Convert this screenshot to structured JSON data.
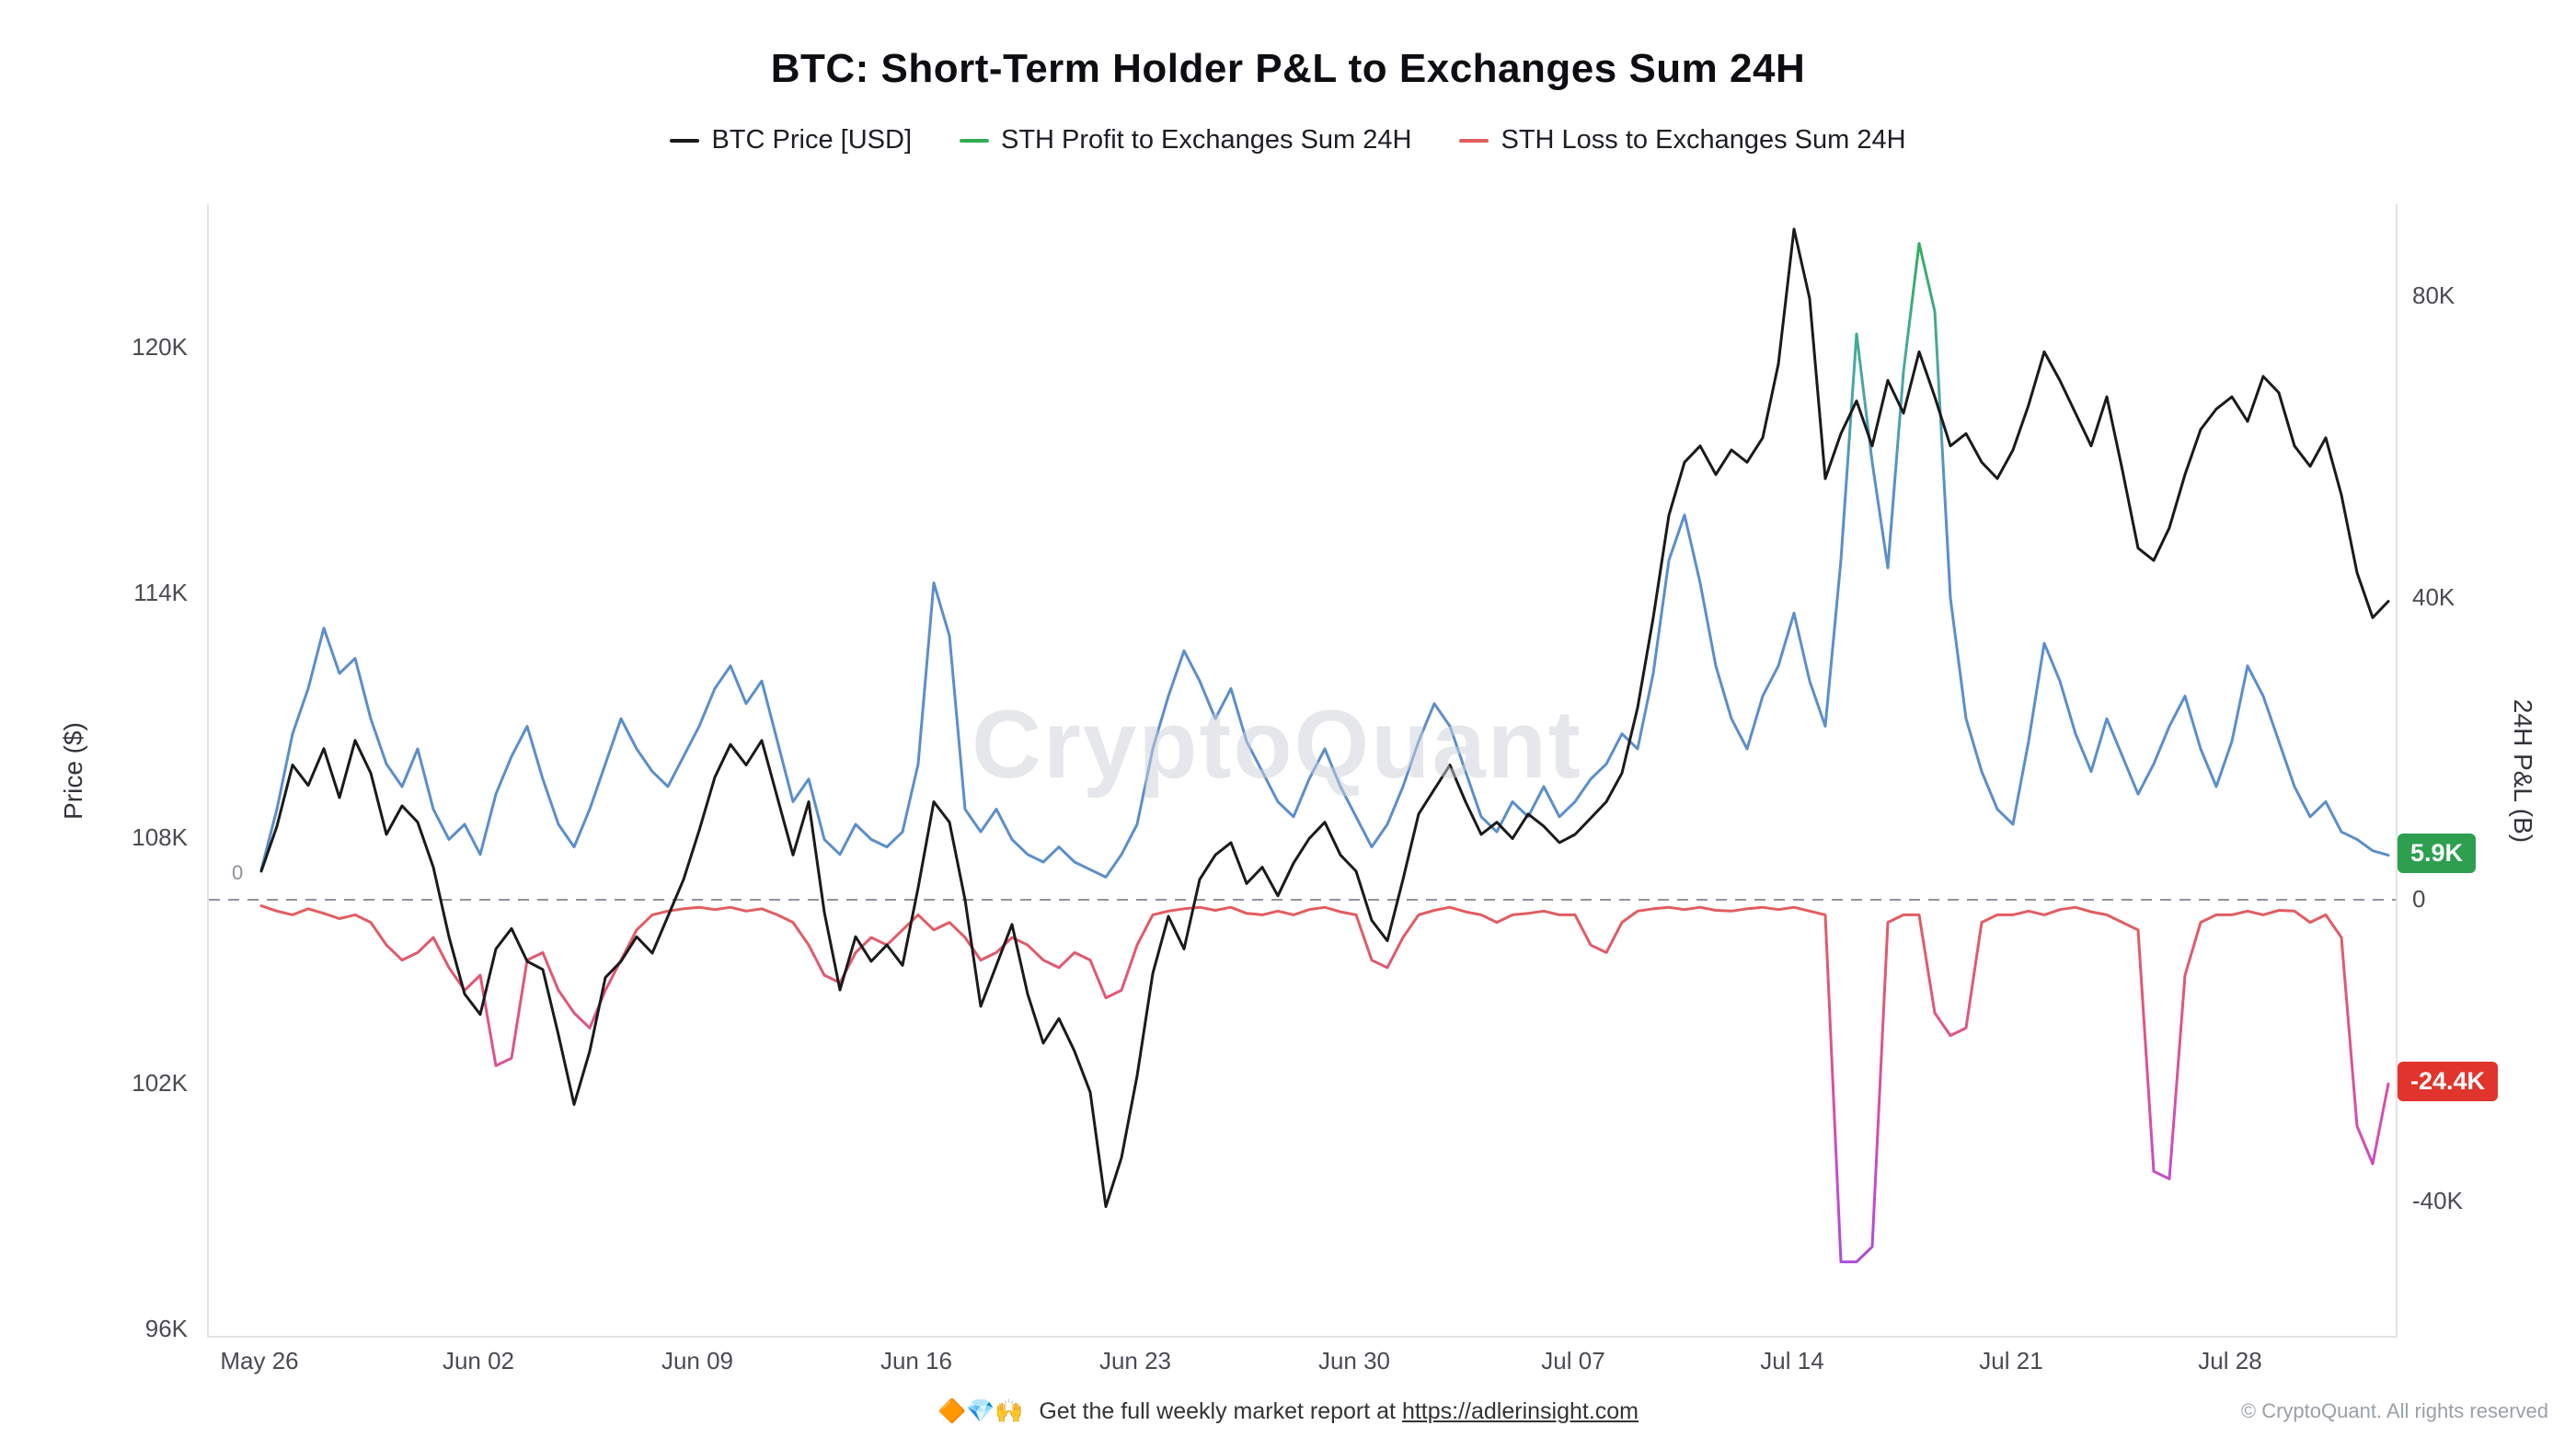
{
  "title": "BTC: Short-Term Holder P&L to Exchanges Sum 24H",
  "watermark": "CryptoQuant",
  "zero_marker": "0",
  "legend": [
    {
      "label": "BTC Price [USD]",
      "color": "#1a1a1a"
    },
    {
      "label": "STH Profit to Exchanges Sum 24H",
      "color": "#2fae52"
    },
    {
      "label": "STH Loss to Exchanges Sum 24H",
      "color": "#e25d5d"
    }
  ],
  "badges": {
    "profit": {
      "label": "5.9K",
      "value": 5.9,
      "color": "#2e9e4f"
    },
    "loss": {
      "label": "-24.4K",
      "value": -24.4,
      "color": "#e0342c"
    }
  },
  "footer": {
    "emojis": "🔶💎🙌",
    "text": "Get the full weekly market report at",
    "link": "https://adlerinsight.com",
    "copyright": "© CryptoQuant. All rights reserved"
  },
  "chart_data": {
    "type": "line",
    "title": "BTC: Short-Term Holder P&L to Exchanges Sum 24H",
    "legend_position": "top",
    "grid": "none (dashed zero line on right axis only)",
    "sample_step_days": 0.5,
    "x_axis": {
      "unit": "date, days since May 26",
      "range_days": [
        0,
        68
      ],
      "ticks": [
        {
          "d": 0,
          "label": "May 26"
        },
        {
          "d": 7,
          "label": "Jun 02"
        },
        {
          "d": 14,
          "label": "Jun 09"
        },
        {
          "d": 21,
          "label": "Jun 16"
        },
        {
          "d": 28,
          "label": "Jun 23"
        },
        {
          "d": 35,
          "label": "Jun 30"
        },
        {
          "d": 42,
          "label": "Jul 07"
        },
        {
          "d": 49,
          "label": "Jul 14"
        },
        {
          "d": 56,
          "label": "Jul 21"
        },
        {
          "d": 63,
          "label": "Jul 28"
        }
      ]
    },
    "y_axes": {
      "left": {
        "label": "Price ($)",
        "range_k_usd": [
          95.8,
          123.5
        ],
        "ticks": [
          {
            "v": 120,
            "label": "120K"
          },
          {
            "v": 114,
            "label": "114K"
          },
          {
            "v": 108,
            "label": "108K"
          },
          {
            "v": 102,
            "label": "102K"
          },
          {
            "v": 96,
            "label": "96K"
          }
        ]
      },
      "right": {
        "label": "24H P&L (B)",
        "range_k": [
          -57,
          92
        ],
        "zero_line_dashed": true,
        "ticks": [
          {
            "v": 80,
            "label": "80K"
          },
          {
            "v": 40,
            "label": "40K"
          },
          {
            "v": 0,
            "label": "0"
          },
          {
            "v": -40,
            "label": "-40K"
          }
        ]
      }
    },
    "series": [
      {
        "name": "BTC Price [USD]",
        "axis": "left",
        "color": "#1a1a1a",
        "values_k_usd": [
          107.2,
          108.3,
          109.8,
          109.3,
          110.2,
          109.0,
          110.4,
          109.6,
          108.1,
          108.8,
          108.4,
          107.3,
          105.6,
          104.2,
          103.7,
          105.3,
          105.8,
          105.0,
          104.8,
          103.2,
          101.5,
          102.8,
          104.6,
          105.0,
          105.6,
          105.2,
          106.1,
          107.0,
          108.2,
          109.5,
          110.3,
          109.8,
          110.4,
          109.0,
          107.6,
          108.9,
          106.2,
          104.3,
          105.6,
          105.0,
          105.4,
          104.9,
          106.8,
          108.9,
          108.4,
          106.5,
          103.9,
          104.9,
          105.9,
          104.2,
          103.0,
          103.6,
          102.8,
          101.8,
          99.0,
          100.2,
          102.2,
          104.7,
          106.1,
          105.3,
          107.0,
          107.6,
          107.9,
          106.9,
          107.3,
          106.6,
          107.4,
          108.0,
          108.4,
          107.6,
          107.2,
          106.0,
          105.5,
          107.0,
          108.6,
          109.2,
          109.8,
          108.9,
          108.1,
          108.4,
          108.0,
          108.6,
          108.3,
          107.9,
          108.1,
          108.5,
          108.9,
          109.6,
          111.2,
          113.4,
          115.9,
          117.2,
          117.6,
          116.9,
          117.5,
          117.2,
          117.8,
          119.6,
          122.9,
          121.2,
          116.8,
          117.9,
          118.7,
          117.6,
          119.2,
          118.4,
          119.9,
          118.8,
          117.6,
          117.9,
          117.2,
          116.8,
          117.5,
          118.6,
          119.9,
          119.2,
          118.4,
          117.6,
          118.8,
          117.0,
          115.1,
          114.8,
          115.6,
          116.9,
          118.0,
          118.5,
          118.8,
          118.2,
          119.3,
          118.9,
          117.6,
          117.1,
          117.8,
          116.4,
          114.5,
          113.4,
          113.8
        ]
      },
      {
        "name": "STH Profit to Exchanges Sum 24H",
        "axis": "right",
        "color": "#2fae52",
        "gradient": [
          "#2fae52",
          "#46a9a2",
          "#5b8ecb"
        ],
        "last_value_k": 5.9,
        "values_k": [
          4,
          12,
          22,
          28,
          36,
          30,
          32,
          24,
          18,
          15,
          20,
          12,
          8,
          10,
          6,
          14,
          19,
          23,
          16,
          10,
          7,
          12,
          18,
          24,
          20,
          17,
          15,
          19,
          23,
          28,
          31,
          26,
          29,
          21,
          13,
          16,
          8,
          6,
          10,
          8,
          7,
          9,
          18,
          42,
          35,
          12,
          9,
          12,
          8,
          6,
          5,
          7,
          5,
          4,
          3,
          6,
          10,
          20,
          27,
          33,
          29,
          24,
          28,
          21,
          17,
          13,
          11,
          16,
          20,
          15,
          11,
          7,
          10,
          15,
          21,
          26,
          23,
          17,
          11,
          9,
          13,
          11,
          15,
          11,
          13,
          16,
          18,
          22,
          20,
          30,
          45,
          51,
          42,
          31,
          24,
          20,
          27,
          31,
          38,
          29,
          23,
          45,
          75,
          58,
          44,
          70,
          87,
          78,
          40,
          24,
          17,
          12,
          10,
          21,
          34,
          29,
          22,
          17,
          24,
          19,
          14,
          18,
          23,
          27,
          20,
          15,
          21,
          31,
          27,
          21,
          15,
          11,
          13,
          9,
          8,
          6.5,
          5.9
        ]
      },
      {
        "name": "STH Loss to Exchanges Sum 24H",
        "axis": "right",
        "color": "#e25d5d",
        "gradient": [
          "#e25d5d",
          "#d44fae",
          "#9a52d6"
        ],
        "last_value_k": -24.4,
        "values_k": [
          -0.8,
          -1.5,
          -2,
          -1.2,
          -1.8,
          -2.5,
          -2,
          -3,
          -6,
          -8,
          -7,
          -5,
          -9,
          -12,
          -10,
          -22,
          -21,
          -8,
          -7,
          -12,
          -15,
          -17,
          -12,
          -8,
          -4,
          -2,
          -1.5,
          -1.2,
          -1,
          -1.3,
          -1,
          -1.5,
          -1.2,
          -2,
          -3,
          -6,
          -10,
          -11,
          -7,
          -5,
          -6,
          -4,
          -2,
          -4,
          -3,
          -5,
          -8,
          -7,
          -5,
          -6,
          -8,
          -9,
          -7,
          -8,
          -13,
          -12,
          -6,
          -2,
          -1.5,
          -1.2,
          -1,
          -1.4,
          -1,
          -1.8,
          -2,
          -1.5,
          -2,
          -1.3,
          -1,
          -1.6,
          -2,
          -8,
          -9,
          -5,
          -2,
          -1.4,
          -1,
          -1.6,
          -2,
          -3,
          -2,
          -1.8,
          -1.5,
          -2,
          -2,
          -6,
          -7,
          -3,
          -1.5,
          -1.2,
          -1,
          -1.3,
          -1,
          -1.4,
          -1.5,
          -1.2,
          -1,
          -1.3,
          -1,
          -1.5,
          -2,
          -48,
          -48,
          -46,
          -3,
          -2,
          -2,
          -15,
          -18,
          -17,
          -3,
          -2,
          -2,
          -1.5,
          -2,
          -1.3,
          -1,
          -1.6,
          -2,
          -3,
          -4,
          -36,
          -37,
          -10,
          -3,
          -2,
          -2,
          -1.5,
          -2,
          -1.4,
          -1.5,
          -3,
          -2,
          -5,
          -30,
          -35,
          -24.4
        ]
      }
    ]
  }
}
